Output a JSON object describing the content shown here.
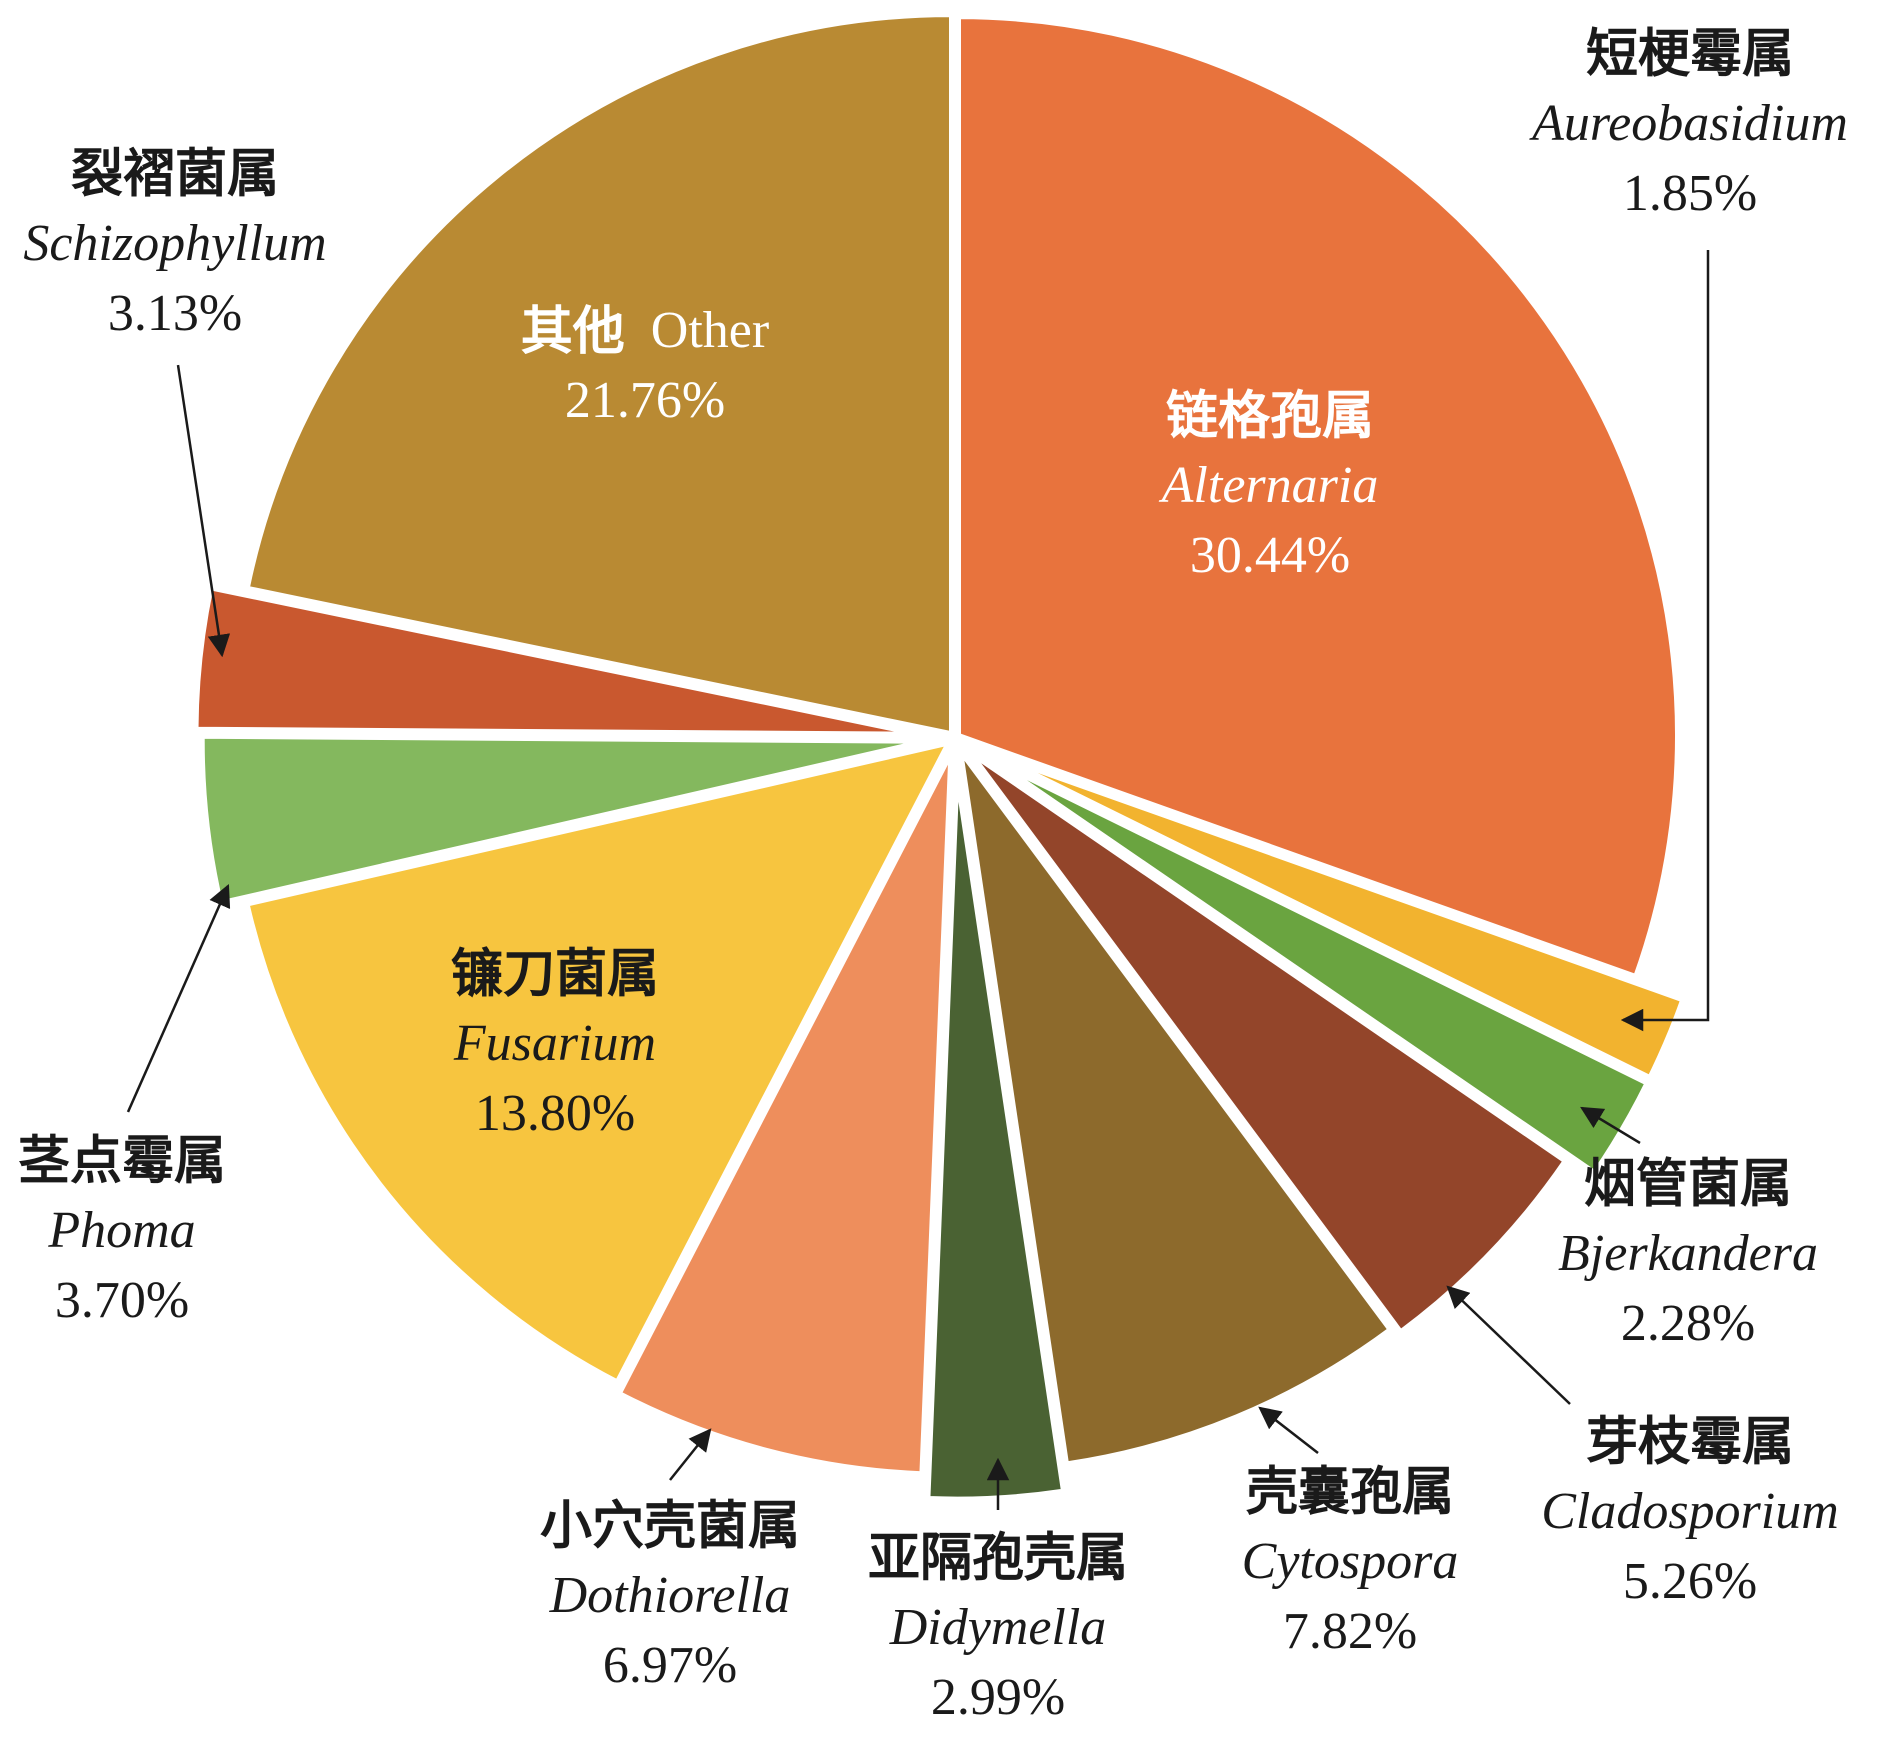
{
  "chart_data": {
    "type": "pie",
    "start_angle_deg": 0,
    "direction": "clockwise",
    "slices": [
      {
        "key": "alternaria",
        "cn": "链格孢属",
        "latin": "Alternaria",
        "value": 30.44,
        "value_label": "30.44%",
        "color": "#E8733D",
        "label_inside": true,
        "label_color": "#ffffff"
      },
      {
        "key": "aureobasidium",
        "cn": "短梗霉属",
        "latin": "Aureobasidium",
        "value": 1.85,
        "value_label": "1.85%",
        "color": "#F2B32F",
        "label_inside": false,
        "label_color": "#1a1a1a"
      },
      {
        "key": "bjerkandera",
        "cn": "烟管菌属",
        "latin": "Bjerkandera",
        "value": 2.28,
        "value_label": "2.28%",
        "color": "#6AA440",
        "label_inside": false,
        "label_color": "#1a1a1a"
      },
      {
        "key": "cladosporium",
        "cn": "芽枝霉属",
        "latin": "Cladosporium",
        "value": 5.26,
        "value_label": "5.26%",
        "color": "#93452A",
        "label_inside": false,
        "label_color": "#1a1a1a"
      },
      {
        "key": "cytospora",
        "cn": "壳囊孢属",
        "latin": "Cytospora",
        "value": 7.82,
        "value_label": "7.82%",
        "color": "#8D6A2C",
        "label_inside": false,
        "label_color": "#1a1a1a"
      },
      {
        "key": "didymella",
        "cn": "亚隔孢壳属",
        "latin": "Didymella",
        "value": 2.99,
        "value_label": "2.99%",
        "color": "#4A6233",
        "label_inside": false,
        "label_color": "#1a1a1a"
      },
      {
        "key": "dothiorella",
        "cn": "小穴壳菌属",
        "latin": "Dothiorella",
        "value": 6.97,
        "value_label": "6.97%",
        "color": "#EE8E5C",
        "label_inside": false,
        "label_color": "#1a1a1a"
      },
      {
        "key": "fusarium",
        "cn": "镰刀菌属",
        "latin": "Fusarium",
        "value": 13.8,
        "value_label": "13.80%",
        "color": "#F7C53F",
        "label_inside": true,
        "label_color": "#1a1a1a"
      },
      {
        "key": "phoma",
        "cn": "茎点霉属",
        "latin": "Phoma",
        "value": 3.7,
        "value_label": "3.70%",
        "color": "#84B85E",
        "label_inside": false,
        "label_color": "#1a1a1a"
      },
      {
        "key": "schizophyllum",
        "cn": "裂褶菌属",
        "latin": "Schizophyllum",
        "value": 3.13,
        "value_label": "3.13%",
        "color": "#C9582F",
        "label_inside": false,
        "label_color": "#1a1a1a"
      },
      {
        "key": "other",
        "cn": "其他",
        "latin": "Other",
        "value": 21.76,
        "value_label": "21.76%",
        "color": "#B98A33",
        "label_inside": true,
        "label_color": "#ffffff"
      }
    ]
  }
}
